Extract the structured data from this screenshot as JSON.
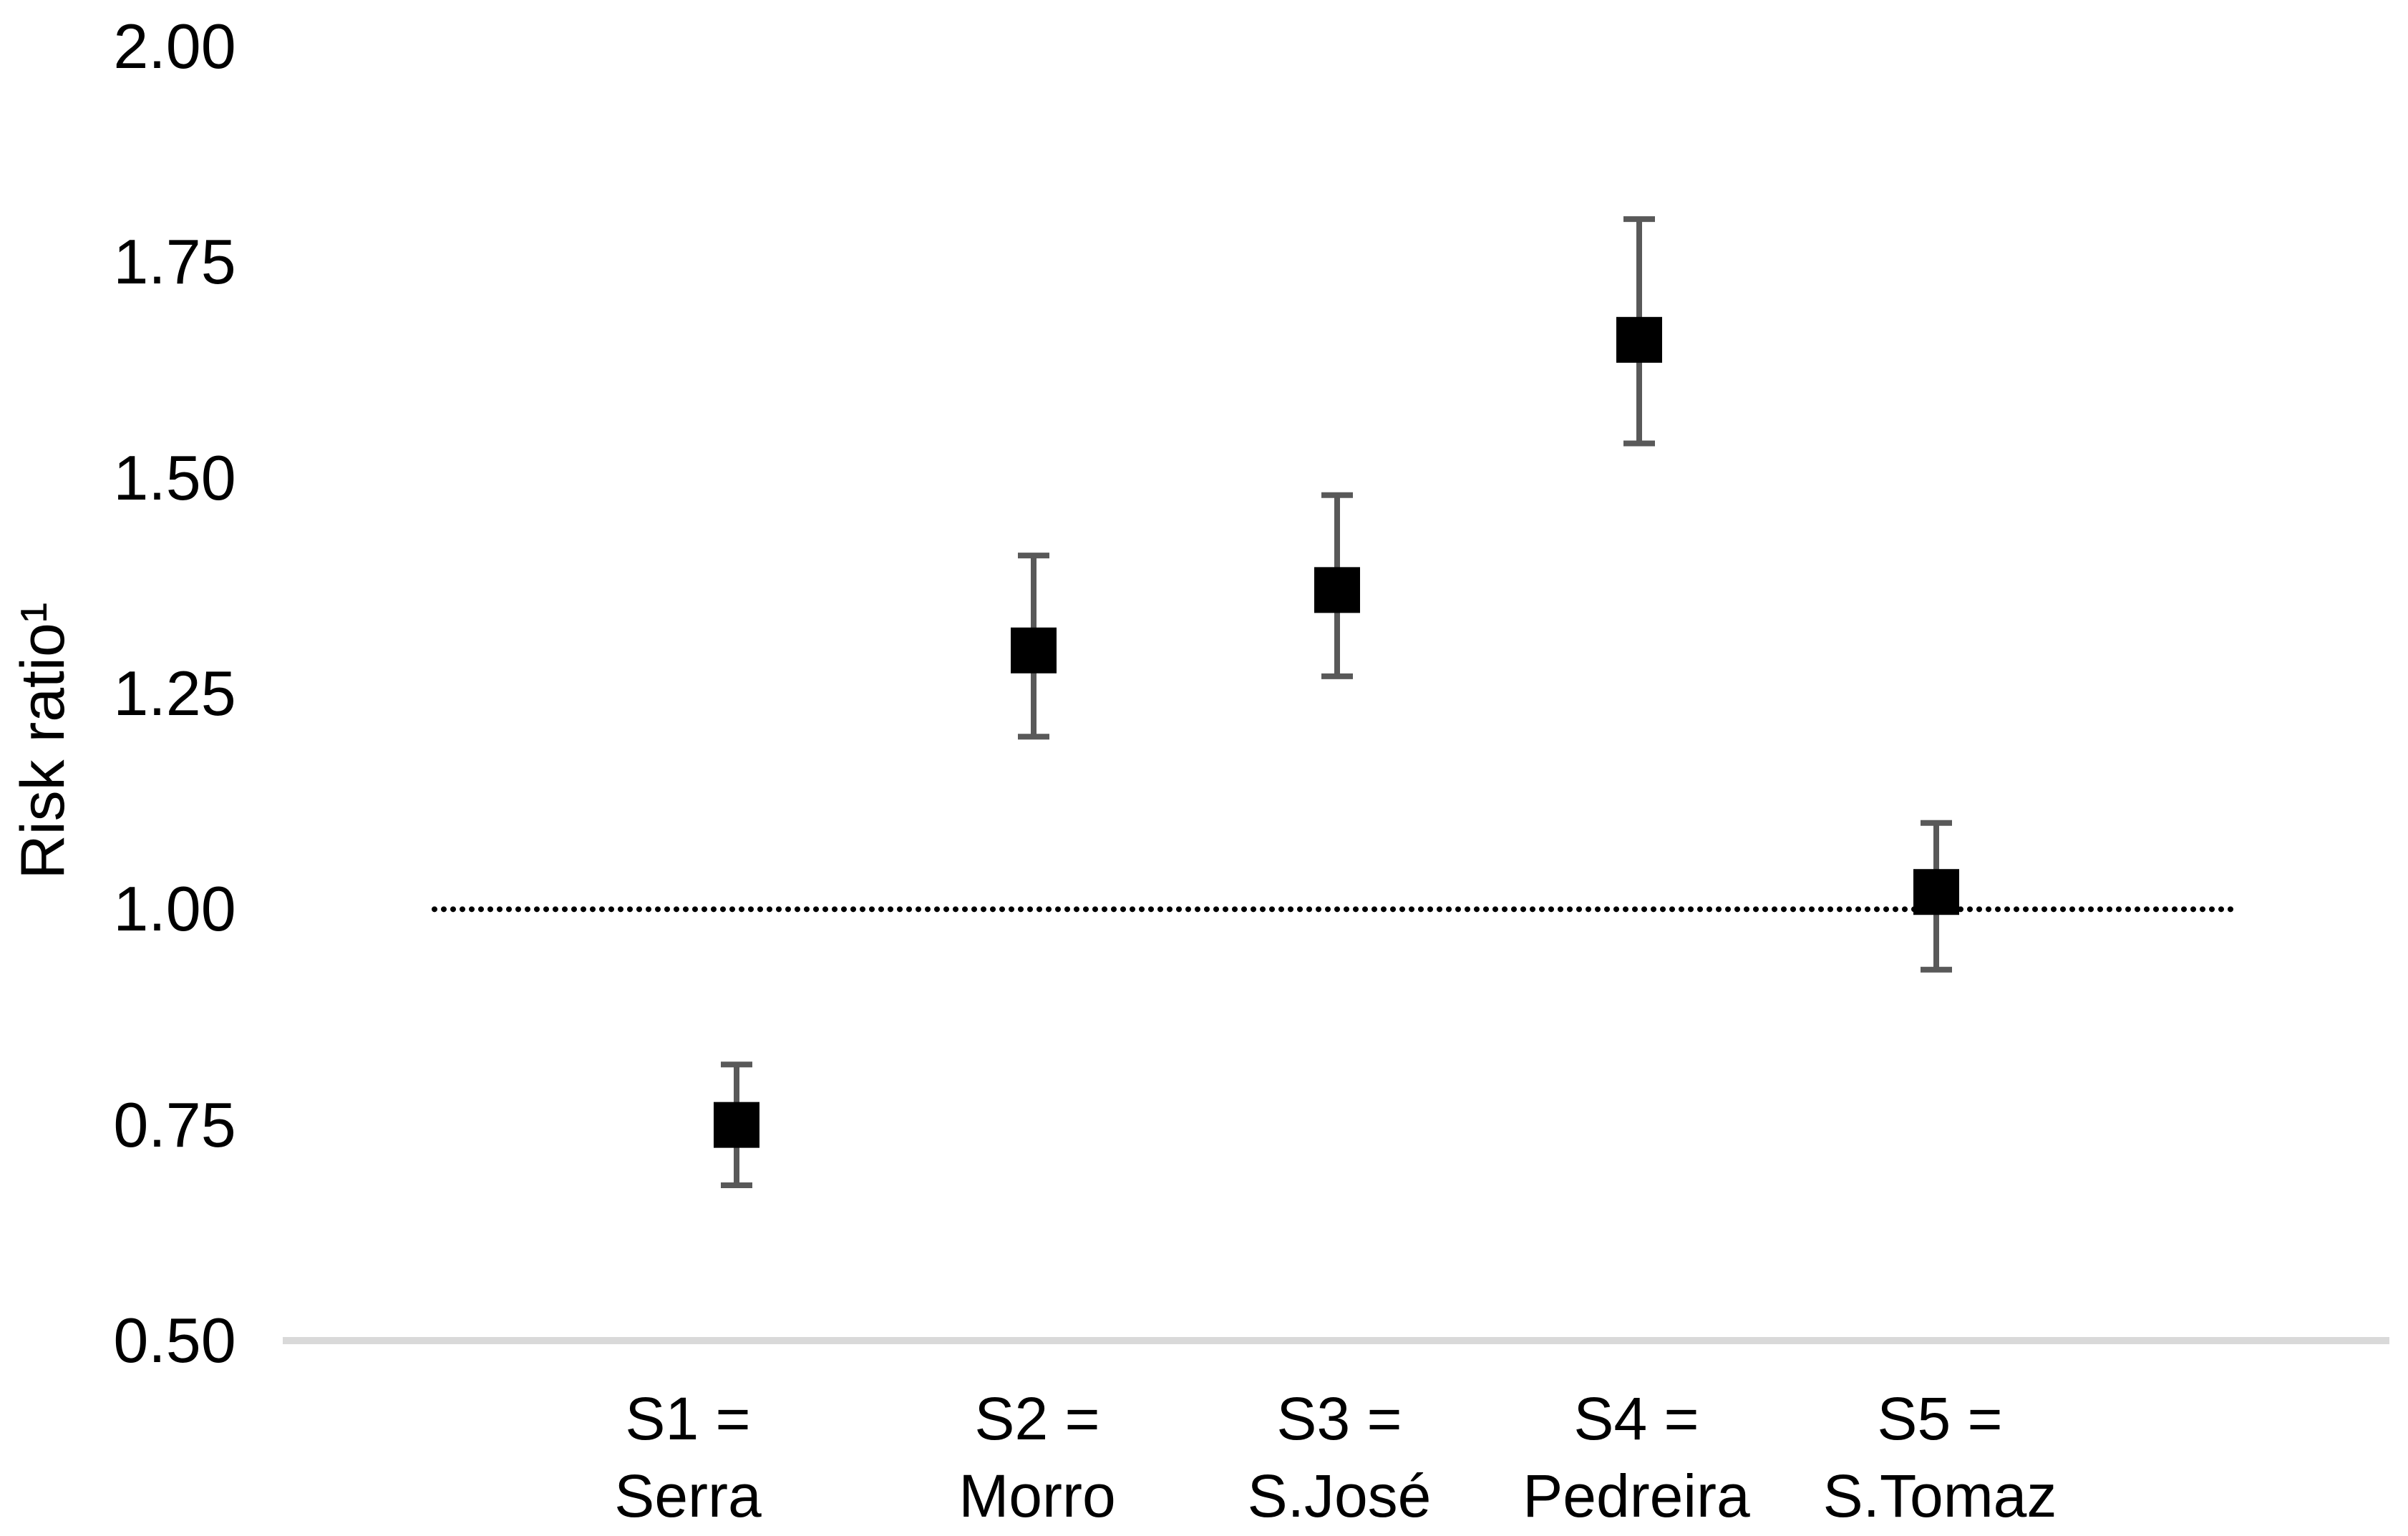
{
  "chart_data": {
    "type": "scatter",
    "subtype": "point-estimates-with-error-bars",
    "y_axis_title": "Risk ratio¹",
    "ylim": [
      0.5,
      2.0
    ],
    "y_ticks": [
      {
        "value": 2.0,
        "label": "2.00"
      },
      {
        "value": 1.75,
        "label": "1.75"
      },
      {
        "value": 1.5,
        "label": "1.50"
      },
      {
        "value": 1.25,
        "label": "1.25"
      },
      {
        "value": 1.0,
        "label": "1.00"
      },
      {
        "value": 0.75,
        "label": "0.75"
      },
      {
        "value": 0.5,
        "label": "0.50"
      }
    ],
    "reference_line_y": 1.0,
    "grid": "off",
    "legend": "none",
    "categories": [
      {
        "code": "S1 =",
        "name": "Serra"
      },
      {
        "code": "S2 =",
        "name": "Morro"
      },
      {
        "code": "S3 =",
        "name": "S.José"
      },
      {
        "code": "S4 =",
        "name": "Pedreira"
      },
      {
        "code": "S5 =",
        "name": "S.Tomaz"
      }
    ],
    "series": [
      {
        "points": [
          {
            "category": "S1 = Serra",
            "estimate": 0.75,
            "ci_low": 0.68,
            "ci_high": 0.82
          },
          {
            "category": "S2 = Morro",
            "estimate": 1.3,
            "ci_low": 1.2,
            "ci_high": 1.41
          },
          {
            "category": "S3 = S.José",
            "estimate": 1.37,
            "ci_low": 1.27,
            "ci_high": 1.48
          },
          {
            "category": "S4 = Pedreira",
            "estimate": 1.66,
            "ci_low": 1.54,
            "ci_high": 1.8
          },
          {
            "category": "S5 = S.Tomaz",
            "estimate": 1.02,
            "ci_low": 0.93,
            "ci_high": 1.1
          }
        ]
      }
    ],
    "colors": {
      "marker": "#000000",
      "error_bar": "#595959",
      "axis_line": "#d9d9d9",
      "reference_line": "#000000",
      "text": "#000000",
      "background": "#ffffff"
    }
  }
}
